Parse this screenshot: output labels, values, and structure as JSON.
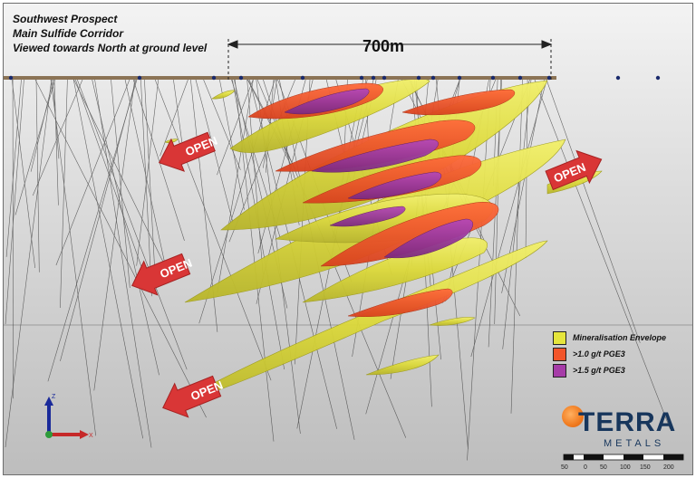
{
  "title_lines": [
    "Southwest Prospect",
    "Main Sulfide Corridor",
    "Viewed towards North at ground level"
  ],
  "scale_bar_label": "700m",
  "open_label": "OPEN",
  "legend": [
    {
      "label": "Mineralisation Envelope",
      "color": "#e5e53c"
    },
    {
      "label": ">1.0 g/t PGE3",
      "color": "#f2552a"
    },
    {
      "label": ">1.5 g/t PGE3",
      "color": "#a63ca8"
    }
  ],
  "brand": {
    "name": "TERRA",
    "sub": "METALS"
  },
  "axis": {
    "z": "Z",
    "x": "X"
  },
  "scale_ticks": [
    "50",
    "0",
    "50",
    "100",
    "150",
    "200"
  ],
  "colors": {
    "envelope": "#e5e53c",
    "pge_1_0": "#f2552a",
    "pge_1_5": "#a63ca8",
    "arrow": "#d93636",
    "brand": "#17365c",
    "brand_accent": "#f07a1e"
  }
}
